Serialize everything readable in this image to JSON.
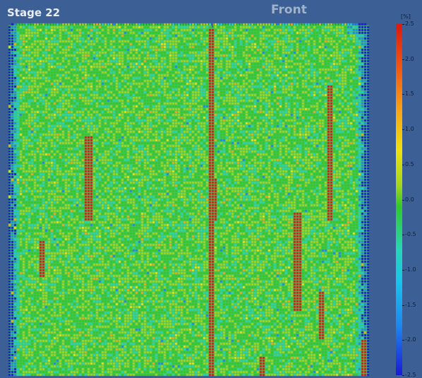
{
  "viewer": {
    "stage_label": "Stage 22",
    "view_title": "Front"
  },
  "colorbar": {
    "unit": "[%]",
    "min": -2.5,
    "max": 2.5,
    "ticks": [
      "2.5",
      "2.0",
      "1.5",
      "1.0",
      "0.5",
      "0.0",
      "-0.5",
      "-1.0",
      "-1.5",
      "-2.0",
      "-2.5"
    ],
    "colors": [
      "#d91a12",
      "#f05a13",
      "#f7a616",
      "#eee10f",
      "#a3d61c",
      "#30c82a",
      "#27d6b2",
      "#19c6ec",
      "#1e86ee",
      "#1a1ad6"
    ]
  },
  "strain_field": {
    "background_color": "#3c5f95",
    "base_color": "#4cc35e"
  }
}
